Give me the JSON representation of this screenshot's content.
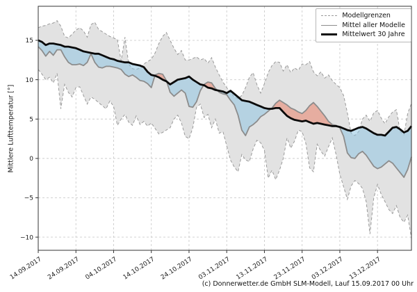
{
  "page": {
    "background": "#ffffff"
  },
  "footer": {
    "credit": "(c) Donnerwetter.de GmbH SLM-Modell, Lauf 15.09.2017 00 Uhr"
  },
  "legend": {
    "position": "top-right",
    "entries": [
      {
        "label": "Modellgrenzen",
        "style": "dashed-gray"
      },
      {
        "label": "Mittel aller Modelle",
        "style": "solid-gray"
      },
      {
        "label": "Mittelwert 30 Jahre",
        "style": "thick-black"
      }
    ]
  },
  "chart_data": {
    "type": "line",
    "title": "",
    "xlabel": "",
    "ylabel": "Mittlere Lufttemperatur [°]",
    "grid": true,
    "ylim": [
      -11.67,
      19.33
    ],
    "yticks": [
      -10,
      -5,
      0,
      5,
      10,
      15
    ],
    "x_tick_labels": [
      "14.09.2017",
      "24.09.2017",
      "04.10.2017",
      "14.10.2017",
      "24.10.2017",
      "03.11.2017",
      "13.11.2017",
      "23.11.2017",
      "03.12.2017",
      "13.12.2017"
    ],
    "x_tick_days": [
      0,
      10,
      20,
      30,
      40,
      50,
      60,
      70,
      80,
      90
    ],
    "n_days": 100,
    "series": [
      {
        "name": "Modellgrenzen (obere Grenze)",
        "style": "dashed-gray",
        "values": [
          16.6,
          16.8,
          16.9,
          17.1,
          17.2,
          17.5,
          16.8,
          15.5,
          15.3,
          15.8,
          16.3,
          16.6,
          16.2,
          15.4,
          17.0,
          17.3,
          16.4,
          16.1,
          15.8,
          15.5,
          15.3,
          15.1,
          12.4,
          15.4,
          12.0,
          11.4,
          11.3,
          11.5,
          12.0,
          12.3,
          12.6,
          13.4,
          14.6,
          15.5,
          16.0,
          15.0,
          14.0,
          13.2,
          13.7,
          12.5,
          12.5,
          12.7,
          12.9,
          12.5,
          12.7,
          12.1,
          12.8,
          11.6,
          10.6,
          9.7,
          9.0,
          8.4,
          7.8,
          7.6,
          8.0,
          9.0,
          10.3,
          10.9,
          9.4,
          8.3,
          9.5,
          10.9,
          11.8,
          12.3,
          12.2,
          11.1,
          11.9,
          10.9,
          11.5,
          11.2,
          12.0,
          11.9,
          12.3,
          11.0,
          10.5,
          11.0,
          10.2,
          10.6,
          9.9,
          9.4,
          9.0,
          8.0,
          5.8,
          3.2,
          2.9,
          3.4,
          5.0,
          5.5,
          4.7,
          5.8,
          6.1,
          5.1,
          4.4,
          5.3,
          5.9,
          6.2,
          3.4,
          3.0,
          5.7,
          7.0
        ]
      },
      {
        "name": "Modellgrenzen (untere Grenze)",
        "style": "dashed-gray",
        "values": [
          11.3,
          10.7,
          10.0,
          10.3,
          9.6,
          10.8,
          6.3,
          9.4,
          8.4,
          7.8,
          9.0,
          9.1,
          8.0,
          6.9,
          7.8,
          7.5,
          7.1,
          6.7,
          6.3,
          7.3,
          6.6,
          4.2,
          5.0,
          5.6,
          4.6,
          4.2,
          5.4,
          4.3,
          4.7,
          4.1,
          4.5,
          3.8,
          3.1,
          3.3,
          3.6,
          3.9,
          5.0,
          5.5,
          4.5,
          2.8,
          2.5,
          3.9,
          6.5,
          6.9,
          5.2,
          5.6,
          3.9,
          5.0,
          3.2,
          3.4,
          1.6,
          -0.2,
          -1.1,
          -1.7,
          0.5,
          -0.2,
          -0.4,
          1.2,
          2.3,
          2.0,
          1.0,
          -2.5,
          -1.5,
          -2.7,
          -1.5,
          0.0,
          2.6,
          1.3,
          2.2,
          3.6,
          3.4,
          1.9,
          -1.2,
          -1.7,
          1.8,
          0.9,
          0.3,
          1.5,
          2.6,
          0.5,
          -2.0,
          -3.6,
          -5.2,
          -3.5,
          -2.8,
          -3.2,
          -3.8,
          -5.5,
          -9.6,
          -5.0,
          -3.3,
          -4.6,
          -5.5,
          -6.5,
          -7.0,
          -6.0,
          -7.5,
          -8.1,
          -7.2,
          -10.2
        ]
      },
      {
        "name": "Mittel aller Modelle",
        "style": "solid-gray",
        "values": [
          14.2,
          13.7,
          13.0,
          13.6,
          13.1,
          13.8,
          13.8,
          12.9,
          12.2,
          11.9,
          11.9,
          12.0,
          11.8,
          12.2,
          13.3,
          12.2,
          11.6,
          11.5,
          11.7,
          11.7,
          11.6,
          11.5,
          11.3,
          10.7,
          10.4,
          10.6,
          10.3,
          9.9,
          9.8,
          9.5,
          9.0,
          10.6,
          10.8,
          10.7,
          9.9,
          8.4,
          7.9,
          8.3,
          8.7,
          8.3,
          6.6,
          6.5,
          7.2,
          8.6,
          9.4,
          9.7,
          9.6,
          8.9,
          8.4,
          8.2,
          8.1,
          7.4,
          6.8,
          5.5,
          3.6,
          2.9,
          4.0,
          4.3,
          4.7,
          5.3,
          5.6,
          6.0,
          6.4,
          7.0,
          7.4,
          7.1,
          6.8,
          6.4,
          6.2,
          5.9,
          5.7,
          6.1,
          6.7,
          7.1,
          6.6,
          6.0,
          5.4,
          4.7,
          4.3,
          4.2,
          3.9,
          2.8,
          0.7,
          0.1,
          0.0,
          0.6,
          0.9,
          0.4,
          -0.3,
          -1.0,
          -1.3,
          -1.1,
          -0.7,
          -0.3,
          -0.6,
          -1.2,
          -1.8,
          -2.4,
          -1.4,
          0.2
        ]
      },
      {
        "name": "Mittelwert 30 Jahre",
        "style": "thick-black",
        "values": [
          15.0,
          14.8,
          14.4,
          14.6,
          14.6,
          14.5,
          14.4,
          14.2,
          14.2,
          14.1,
          14.0,
          13.8,
          13.6,
          13.5,
          13.4,
          13.3,
          13.3,
          13.1,
          12.9,
          12.7,
          12.6,
          12.4,
          12.3,
          12.2,
          12.2,
          12.0,
          11.9,
          11.8,
          11.6,
          11.0,
          10.6,
          10.5,
          10.3,
          10.0,
          9.8,
          9.4,
          9.7,
          10.0,
          10.1,
          10.2,
          10.4,
          10.0,
          9.7,
          9.4,
          9.3,
          9.0,
          8.9,
          8.7,
          8.6,
          8.5,
          8.3,
          8.6,
          8.2,
          7.8,
          7.4,
          7.3,
          7.2,
          7.0,
          6.8,
          6.6,
          6.4,
          6.3,
          6.3,
          6.4,
          6.4,
          5.9,
          5.4,
          5.1,
          4.9,
          4.8,
          4.7,
          4.8,
          4.6,
          4.4,
          4.5,
          4.4,
          4.3,
          4.2,
          4.1,
          4.1,
          4.0,
          3.8,
          3.6,
          3.5,
          3.7,
          3.9,
          4.0,
          3.8,
          3.5,
          3.2,
          3.0,
          3.0,
          2.9,
          3.4,
          3.9,
          4.0,
          3.7,
          3.3,
          3.5,
          4.1
        ]
      }
    ],
    "fills": [
      {
        "name": "model-range-band",
        "between": [
          "Modellgrenzen (obere Grenze)",
          "Modellgrenzen (untere Grenze)"
        ],
        "color": "#e2e2e2"
      },
      {
        "name": "colder-than-normal",
        "between": [
          "Mittel aller Modelle",
          "Mittelwert 30 Jahre"
        ],
        "when": "model below 30y mean",
        "color": "#8fc4e2"
      },
      {
        "name": "warmer-than-normal",
        "between": [
          "Mittel aller Modelle",
          "Mittelwert 30 Jahre"
        ],
        "when": "model above 30y mean",
        "color": "#e98b74"
      }
    ],
    "colors": {
      "band_fill": "#e2e2e2",
      "band_edge": "#999999",
      "grid": "#cccccc",
      "model_mean_line": "#8c8c8c",
      "mean30_line": "#0a0a0a",
      "cold_fill": "#8fc4e2",
      "cold_fill_opacity": 0.55,
      "warm_fill": "#e98b74",
      "warm_fill_opacity": 0.6,
      "axis": "#333333",
      "tick_text": "#1a1a1a"
    }
  }
}
